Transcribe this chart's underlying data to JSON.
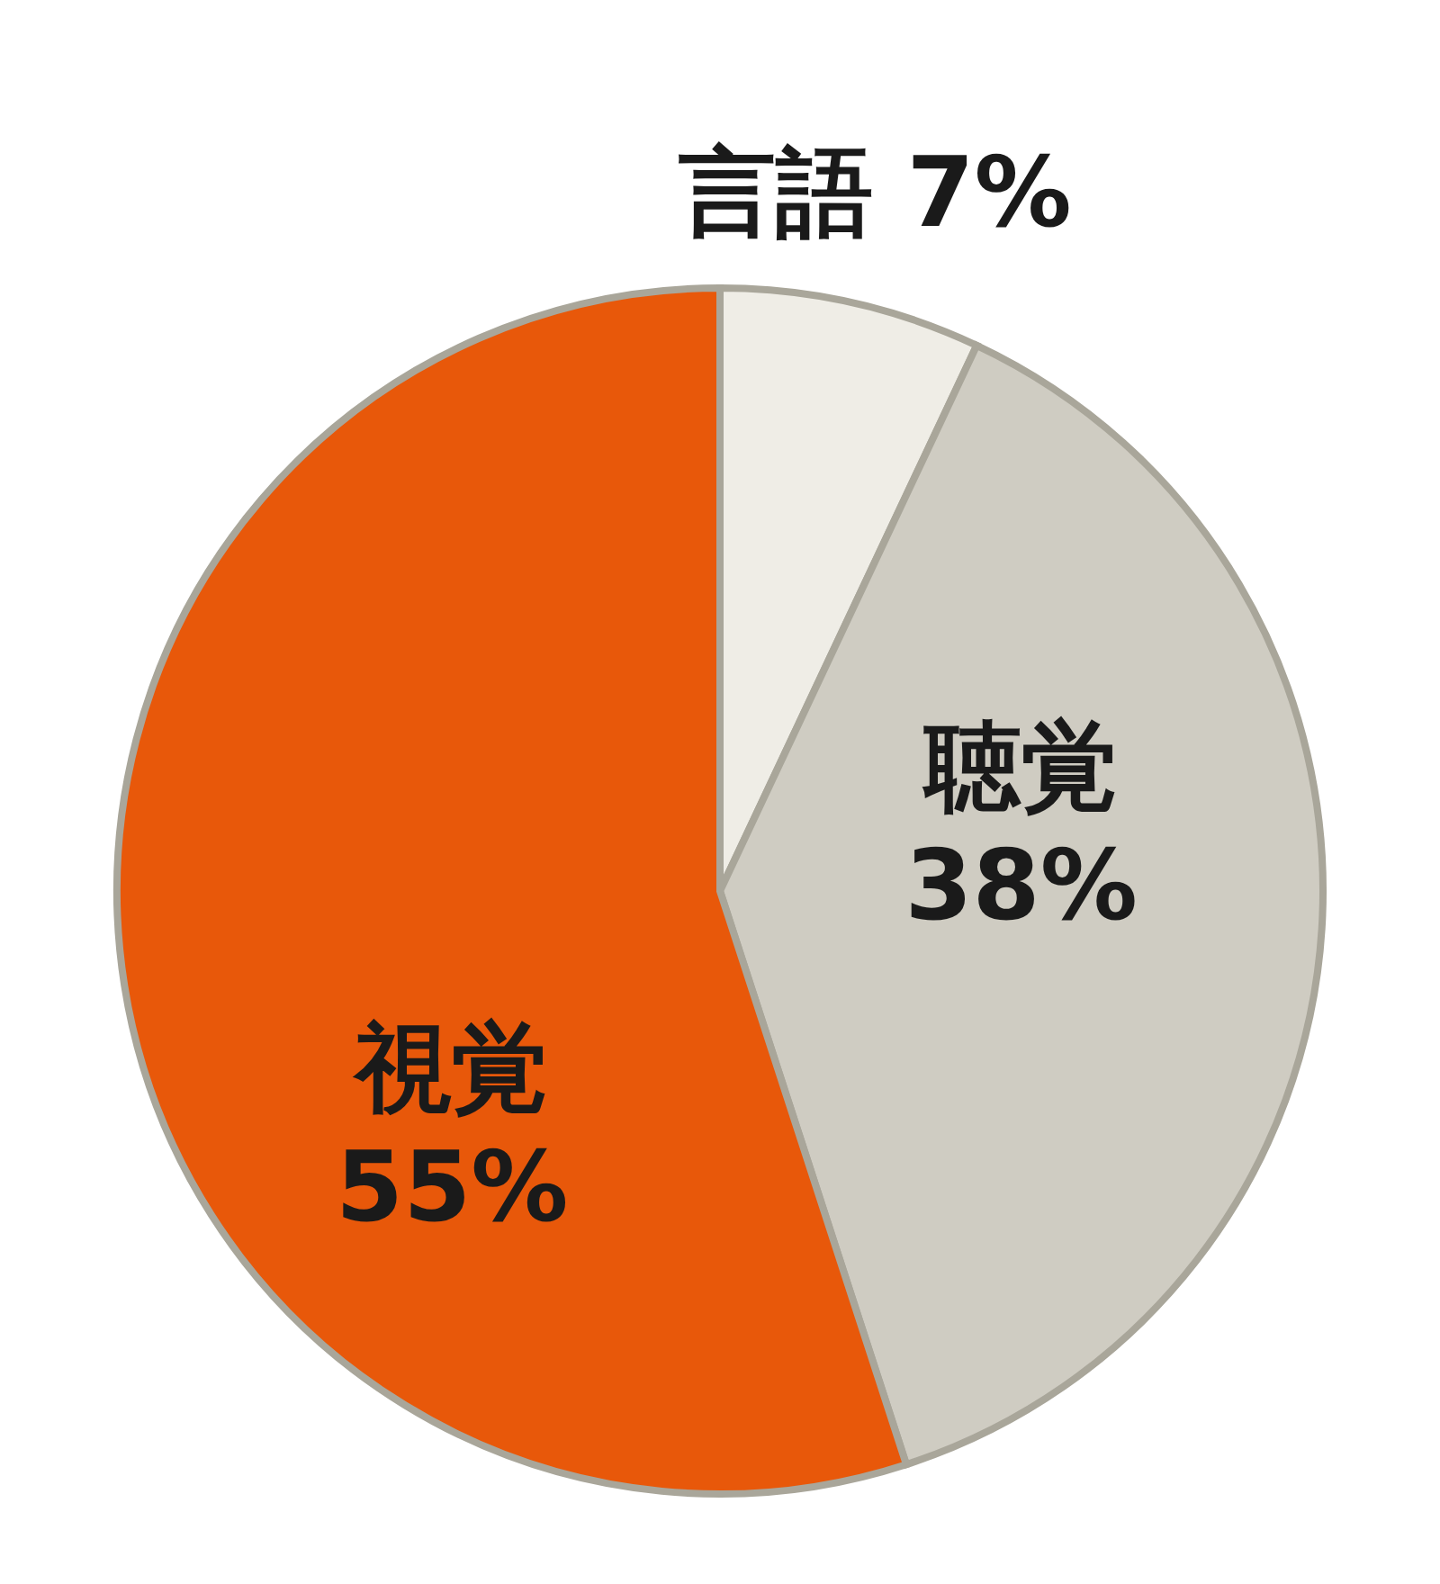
{
  "chart_data": {
    "type": "pie",
    "categories": [
      "言語",
      "聴覚",
      "視覚"
    ],
    "values": [
      7,
      38,
      55
    ],
    "value_labels": [
      "7%",
      "38%",
      "55%"
    ],
    "colors": [
      "#efede6",
      "#cfccc2",
      "#e8580a"
    ]
  }
}
